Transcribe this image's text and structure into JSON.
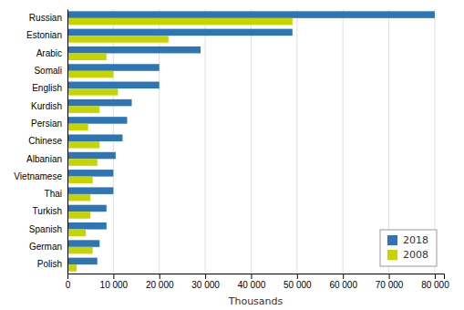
{
  "chart_data": {
    "type": "bar",
    "orientation": "horizontal",
    "categories": [
      "Russian",
      "Estonian",
      "Arabic",
      "Somali",
      "English",
      "Kurdish",
      "Persian",
      "Chinese",
      "Albanian",
      "Vietnamese",
      "Thai",
      "Turkish",
      "Spanish",
      "German",
      "Polish"
    ],
    "series": [
      {
        "name": "2018",
        "color": "#2e75b6",
        "values": [
          80000,
          49000,
          29000,
          20000,
          20000,
          14000,
          13000,
          12000,
          10500,
          10000,
          10000,
          8500,
          8500,
          7000,
          6500
        ]
      },
      {
        "name": "2008",
        "color": "#c8d400",
        "values": [
          49000,
          22000,
          8500,
          10000,
          11000,
          7000,
          4500,
          7000,
          6500,
          5500,
          5000,
          5000,
          4000,
          5500,
          2000
        ]
      }
    ],
    "xlabel": "Thousands",
    "xlim": [
      0,
      82000
    ],
    "xticks": [
      0,
      {
        "value": 10000,
        "label": "10 000"
      },
      {
        "value": 20000,
        "label": "20 000"
      },
      {
        "value": 30000,
        "label": "30 000"
      },
      {
        "value": 40000,
        "label": "40 000"
      },
      {
        "value": 50000,
        "label": "50 000"
      },
      {
        "value": 60000,
        "label": "60 000"
      },
      {
        "value": 70000,
        "label": "70 000"
      },
      {
        "value": 80000,
        "label": "80 000"
      }
    ],
    "grid": true,
    "legend": "lower right"
  }
}
